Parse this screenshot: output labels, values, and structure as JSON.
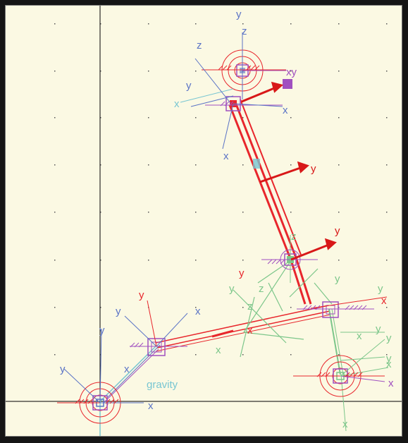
{
  "viewport": {
    "gravity_label": "gravity",
    "background": "#fbf9e3",
    "colors": {
      "red": "#e8262c",
      "dark_red": "#d81818",
      "blue": "#5b74c6",
      "cyan": "#78c6d2",
      "green": "#7cc68a",
      "magenta": "#a050c0",
      "axis": "#000000"
    }
  },
  "frames": {
    "top_joint": {
      "labels": [
        "y",
        "z",
        "xy",
        "z",
        "y",
        "x",
        "x",
        "x"
      ]
    },
    "link_mid": {
      "labels": [
        "y"
      ]
    },
    "mid_joint": {
      "labels": [
        "y",
        "z",
        "y"
      ]
    },
    "right_joint": {
      "labels": [
        "y",
        "x",
        "y",
        "x",
        "z",
        "z",
        "y"
      ]
    },
    "left_elbow": {
      "labels": [
        "y",
        "x",
        "y",
        "x",
        "y",
        "x"
      ]
    },
    "base": {
      "labels": [
        "y",
        "x"
      ]
    },
    "bottom_right": {
      "labels": [
        "y",
        "x",
        "y",
        "x",
        "y",
        "x",
        "x"
      ]
    }
  }
}
